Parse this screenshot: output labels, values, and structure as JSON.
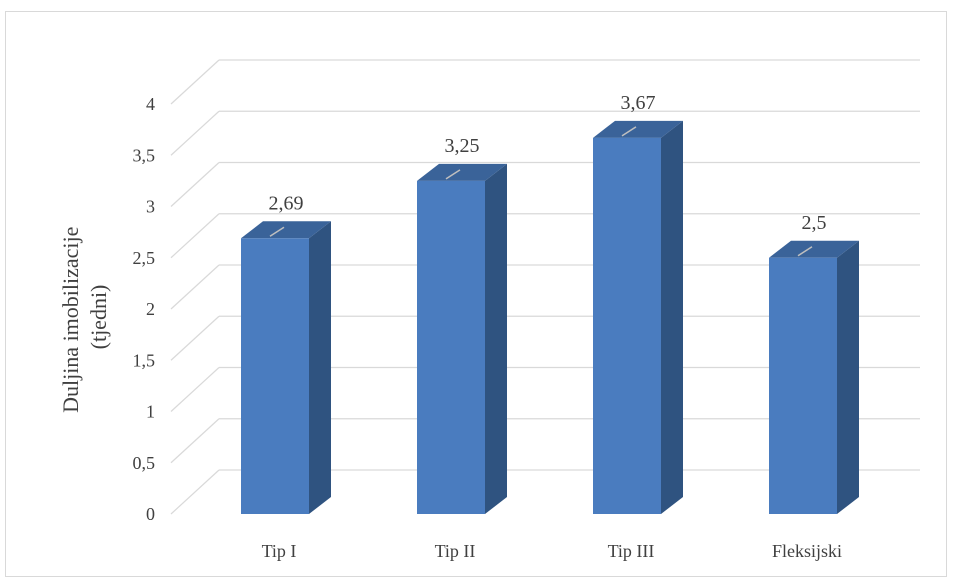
{
  "chart_data": {
    "type": "bar",
    "title": "",
    "xlabel": "",
    "ylabel": "Duljina imobilizacije (tjedni)",
    "ylabel_lines": [
      "Duljina imobilizacije",
      "(tjedni)"
    ],
    "categories": [
      "Tip I",
      "Tip II",
      "Tip III",
      "Fleksijski"
    ],
    "values": [
      2.69,
      3.25,
      3.67,
      2.5
    ],
    "value_labels": [
      "2,69",
      "3,25",
      "3,67",
      "2,5"
    ],
    "yticks": [
      0,
      0.5,
      1,
      1.5,
      2,
      2.5,
      3,
      3.5,
      4
    ],
    "ytick_labels": [
      "0",
      "0,5",
      "1",
      "1,5",
      "2",
      "2,5",
      "3",
      "3,5",
      "4"
    ],
    "ylim": [
      0,
      4.3
    ],
    "grid": true,
    "legend": "none",
    "three_d": true,
    "colors": {
      "bar_front": "#4a7cbf",
      "bar_side": "#2f5380",
      "bar_top": "#3a6399",
      "grid": "#d9d9d9",
      "text": "#404040"
    }
  }
}
